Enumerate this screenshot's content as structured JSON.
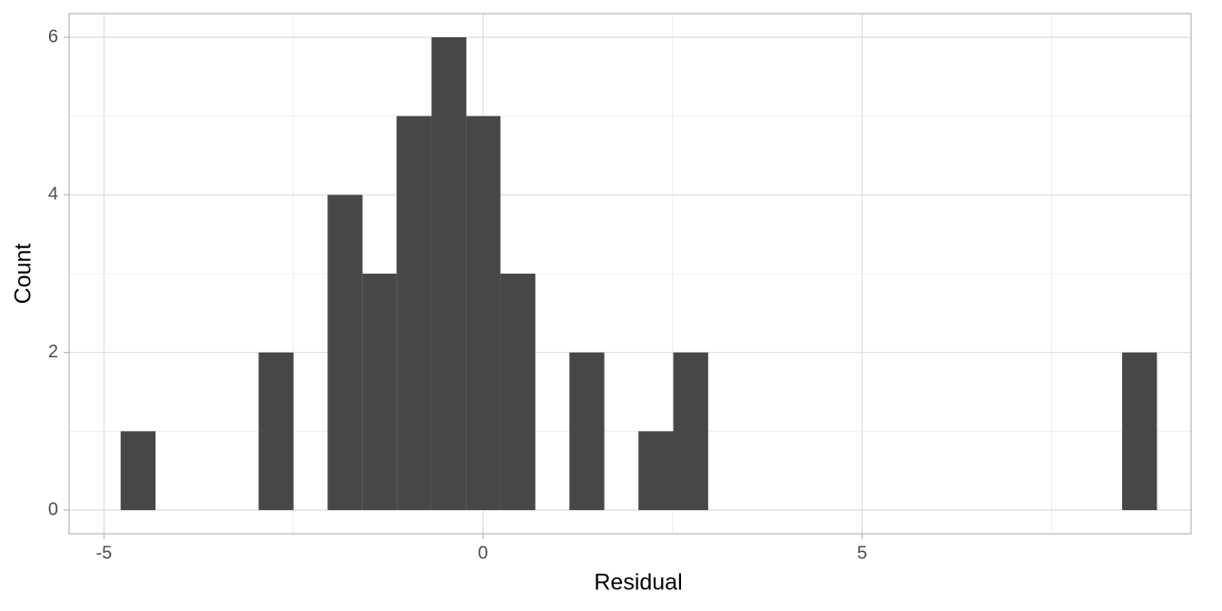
{
  "chart_data": {
    "type": "histogram",
    "x_label": "Residual",
    "y_label": "Count",
    "bins": [
      -4.78,
      -4.32,
      -3.87,
      -3.41,
      -2.96,
      -2.5,
      -2.05,
      -1.59,
      -1.14,
      -0.68,
      -0.22,
      0.23,
      0.69,
      1.14,
      1.6,
      2.05,
      2.51,
      2.97,
      3.42,
      3.88,
      4.33,
      4.79,
      5.24,
      5.7,
      6.15,
      6.61,
      7.07,
      7.52,
      7.98,
      8.43,
      8.89
    ],
    "values": [
      1,
      0,
      0,
      0,
      2,
      0,
      4,
      3,
      5,
      6,
      5,
      3,
      0,
      2,
      0,
      1,
      2,
      0,
      0,
      0,
      0,
      0,
      0,
      0,
      0,
      0,
      0,
      0,
      0,
      2
    ],
    "color": "#474747",
    "xlim": [
      -5.46,
      9.34
    ],
    "xticks": [
      -5,
      0,
      5
    ],
    "x_minor_grid": [
      -2.5,
      2.5,
      7.5
    ],
    "ylim": [
      -0.3,
      6.3
    ],
    "yticks": [
      0,
      2,
      4,
      6
    ],
    "y_minor_grid": [
      1,
      3,
      5
    ],
    "grid": true
  }
}
